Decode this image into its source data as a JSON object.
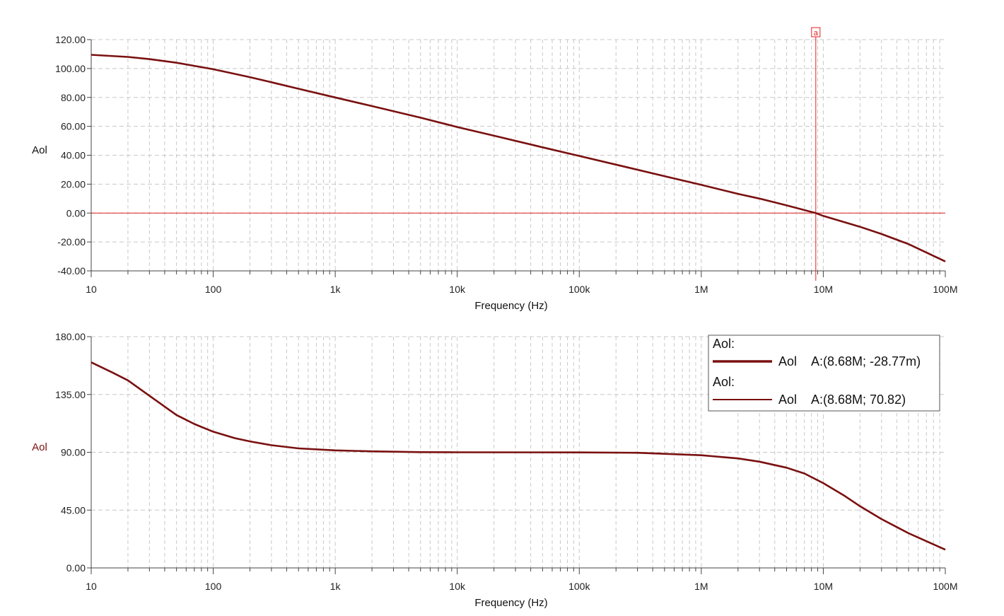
{
  "colors": {
    "trace": "#7a1010",
    "cursor": "#e02020",
    "grid": "#c8c8c8",
    "axis": "#444444"
  },
  "chart_data": [
    {
      "type": "line",
      "x_scale": "log",
      "xlim": [
        10,
        100000000
      ],
      "ylim": [
        -40,
        120
      ],
      "xlabel": "Frequency (Hz)",
      "ylabel": "Aol",
      "x_tick_labels": [
        "10",
        "100",
        "1k",
        "10k",
        "100k",
        "1M",
        "10M",
        "100M"
      ],
      "y_tick_labels": [
        "120.00",
        "100.00",
        "80.00",
        "60.00",
        "40.00",
        "20.00",
        "0.00",
        "-20.00",
        "-40.00"
      ],
      "grid": true,
      "cursor": {
        "label": "a",
        "x": 8680000,
        "y": -0.02877
      },
      "series": [
        {
          "name": "Aol",
          "x": [
            10,
            20,
            30,
            50,
            100,
            200,
            300,
            500,
            1000,
            2000,
            5000,
            10000,
            20000,
            50000,
            100000,
            200000,
            500000,
            1000000,
            2000000,
            3000000,
            5000000,
            8680000,
            10000000,
            20000000,
            30000000,
            50000000,
            100000000
          ],
          "y": [
            109.5,
            108,
            106.5,
            104,
            99.5,
            94,
            90.5,
            86,
            80,
            74,
            66,
            59.5,
            53.5,
            45.5,
            39.5,
            33.5,
            25.5,
            19.5,
            13.3,
            10,
            5.3,
            0,
            -2,
            -9.5,
            -14.5,
            -21.5,
            -33.5
          ]
        }
      ]
    },
    {
      "type": "line",
      "x_scale": "log",
      "xlim": [
        10,
        100000000
      ],
      "ylim": [
        0,
        180
      ],
      "xlabel": "Frequency (Hz)",
      "ylabel": "Aol",
      "x_tick_labels": [
        "10",
        "100",
        "1k",
        "10k",
        "100k",
        "1M",
        "10M",
        "100M"
      ],
      "y_tick_labels": [
        "180.00",
        "135.00",
        "90.00",
        "45.00",
        "0.00"
      ],
      "grid": true,
      "legend_position": "top-right",
      "legend": [
        {
          "title": "Aol:",
          "name": "Aol",
          "cursor_text": "A:(8.68M; -28.77m)",
          "line": "thick"
        },
        {
          "title": "Aol:",
          "name": "Aol",
          "cursor_text": "A:(8.68M; 70.82)",
          "line": "thin"
        }
      ],
      "series": [
        {
          "name": "Aol",
          "x": [
            10,
            15,
            20,
            30,
            50,
            70,
            100,
            150,
            200,
            300,
            500,
            1000,
            2000,
            5000,
            10000,
            100000,
            300000,
            1000000,
            2000000,
            3000000,
            5000000,
            7000000,
            10000000,
            15000000,
            20000000,
            30000000,
            50000000,
            100000000
          ],
          "y": [
            160,
            152,
            146,
            134,
            119,
            112,
            106,
            101,
            98.5,
            95.5,
            93,
            91.5,
            90.7,
            90.1,
            90,
            89.9,
            89.6,
            87.7,
            85.2,
            82.7,
            78,
            73.5,
            66,
            56,
            48,
            38,
            27,
            14.2
          ]
        }
      ]
    }
  ]
}
